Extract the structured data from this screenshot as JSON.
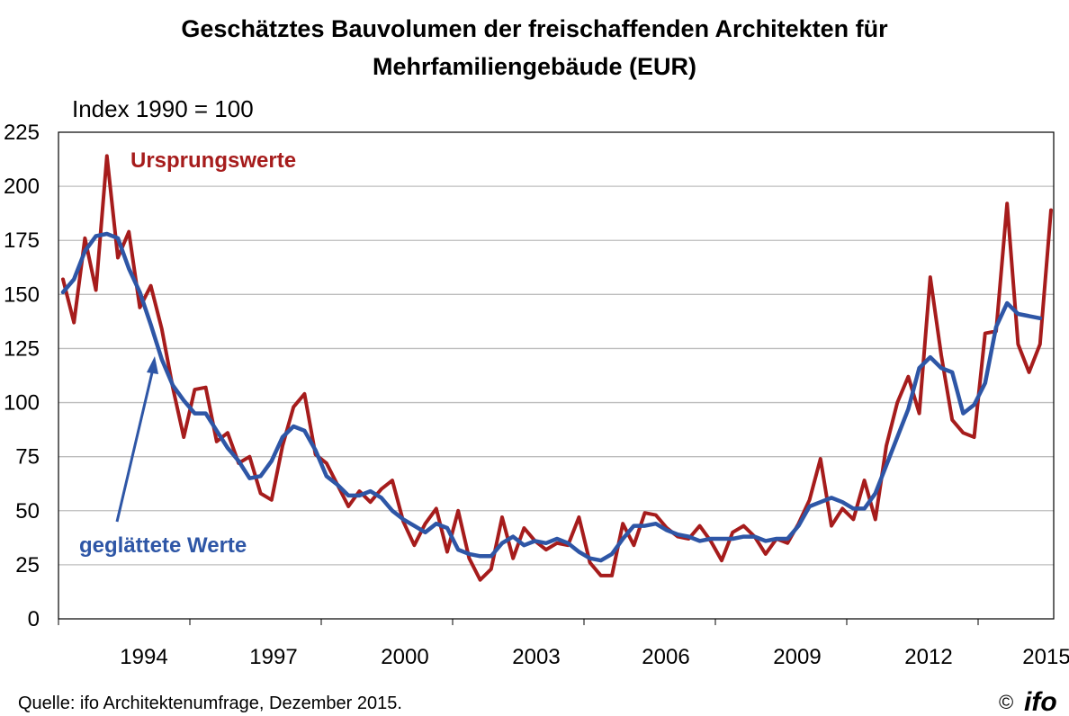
{
  "chart_data": {
    "type": "line",
    "title_line1": "Geschätztes Bauvolumen der freischaffenden Architekten für",
    "title_line2": "Mehrfamiliengebäude (EUR)",
    "subtitle": "Index 1990 = 100",
    "ylim": [
      0,
      225
    ],
    "y_ticks": [
      "0",
      "25",
      "50",
      "75",
      "100",
      "125",
      "150",
      "175",
      "200",
      "225"
    ],
    "x_tick_labels": [
      "1994",
      "1997",
      "2000",
      "2003",
      "2006",
      "2009",
      "2012",
      "2015"
    ],
    "grid": "horizontal",
    "series": [
      {
        "name": "Ursprungswerte",
        "color": "#a61c1c",
        "values": [
          157,
          137,
          176,
          152,
          214,
          167,
          179,
          144,
          154,
          134,
          107,
          84,
          106,
          107,
          82,
          86,
          72,
          75,
          58,
          55,
          80,
          98,
          104,
          76,
          72,
          62,
          52,
          59,
          54,
          60,
          64,
          45,
          34,
          44,
          51,
          31,
          50,
          28,
          18,
          23,
          47,
          28,
          42,
          36,
          32,
          35,
          34,
          47,
          26,
          20,
          20,
          44,
          34,
          49,
          48,
          42,
          38,
          37,
          43,
          36,
          27,
          40,
          43,
          38,
          30,
          37,
          35,
          44,
          55,
          74,
          43,
          51,
          46,
          64,
          46,
          80,
          100,
          112,
          95,
          158,
          122,
          92,
          86,
          84,
          132,
          133,
          192,
          127,
          114,
          127,
          189
        ]
      },
      {
        "name": "geglättete Werte",
        "color": "#2e56a6",
        "values": [
          151,
          157,
          170,
          177,
          178,
          176,
          162,
          151,
          136,
          120,
          108,
          101,
          95,
          95,
          87,
          79,
          73,
          65,
          66,
          73,
          84,
          89,
          87,
          78,
          66,
          62,
          57,
          57,
          59,
          56,
          50,
          46,
          43,
          40,
          44,
          42,
          32,
          30,
          29,
          29,
          35,
          38,
          34,
          36,
          35,
          37,
          35,
          31,
          28,
          27,
          30,
          37,
          43,
          43,
          44,
          41,
          39,
          38,
          36,
          37,
          37,
          37,
          38,
          38,
          36,
          37,
          37,
          43,
          52,
          54,
          56,
          54,
          51,
          51,
          58,
          71,
          84,
          97,
          116,
          121,
          116,
          114,
          95,
          99,
          109,
          135,
          146,
          141,
          140,
          139
        ]
      }
    ],
    "annotations": [
      "Ursprungswerte",
      "geglättete Werte"
    ],
    "source": "Quelle: ifo Architektenumfrage, Dezember  2015.",
    "copyright": "©",
    "logo": "ifo"
  }
}
